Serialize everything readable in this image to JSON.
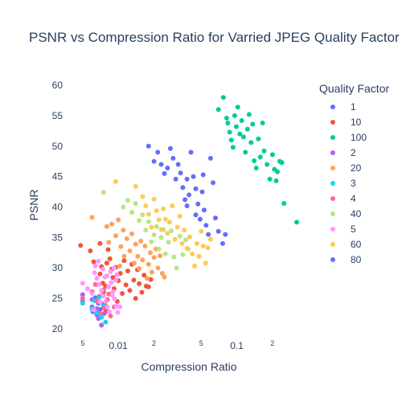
{
  "chart_data": {
    "type": "scatter",
    "title": "PSNR vs Compression Ratio for Varried JPEG Quality Factor",
    "xlabel": "Compression Ratio",
    "ylabel": "PSNR",
    "x_scale": "log",
    "xlim": [
      0.0035,
      0.38
    ],
    "ylim": [
      19.2,
      60.8
    ],
    "y_ticks": [
      20,
      25,
      30,
      35,
      40,
      45,
      50,
      55,
      60
    ],
    "x_major_ticks": [
      {
        "value": 0.01,
        "label": "0.01"
      },
      {
        "value": 0.1,
        "label": "0.1"
      }
    ],
    "x_minor_ticks": [
      {
        "value": 0.005,
        "label": "5"
      },
      {
        "value": 0.02,
        "label": "2"
      },
      {
        "value": 0.05,
        "label": "5"
      },
      {
        "value": 0.2,
        "label": "2"
      }
    ],
    "grid": false,
    "legend_title": "Quality Factor",
    "legend_position": "right",
    "series": [
      {
        "name": "1",
        "color": "#636efa",
        "points": [
          [
            0.005,
            24.5
          ],
          [
            0.006,
            23.6
          ],
          [
            0.0068,
            24.2
          ],
          [
            0.0061,
            22.8
          ],
          [
            0.0064,
            25.1
          ],
          [
            0.007,
            23.2
          ],
          [
            0.0075,
            24.0
          ],
          [
            0.0066,
            22.3
          ]
        ]
      },
      {
        "name": "10",
        "color": "#ef553b",
        "points": [
          [
            0.0048,
            33.7
          ],
          [
            0.0058,
            32.8
          ],
          [
            0.0062,
            31.0
          ],
          [
            0.007,
            34.0
          ],
          [
            0.0072,
            30.2
          ],
          [
            0.007,
            29.0
          ],
          [
            0.0074,
            27.5
          ],
          [
            0.0075,
            26.0
          ],
          [
            0.0077,
            24.2
          ],
          [
            0.0079,
            22.9
          ],
          [
            0.008,
            30.8
          ],
          [
            0.0082,
            33.0
          ],
          [
            0.0085,
            31.5
          ],
          [
            0.0088,
            29.8
          ],
          [
            0.009,
            28.4
          ],
          [
            0.0092,
            26.6
          ],
          [
            0.0095,
            30.1
          ],
          [
            0.0098,
            24.5
          ],
          [
            0.01,
            27.9
          ],
          [
            0.0104,
            29.1
          ],
          [
            0.0108,
            25.8
          ],
          [
            0.0112,
            31.2
          ],
          [
            0.0116,
            27.2
          ],
          [
            0.012,
            29.5
          ],
          [
            0.0125,
            26.3
          ],
          [
            0.013,
            30.6
          ],
          [
            0.0135,
            28.0
          ],
          [
            0.014,
            25.0
          ],
          [
            0.0145,
            29.7
          ],
          [
            0.015,
            27.4
          ],
          [
            0.0158,
            26.0
          ],
          [
            0.0165,
            28.8
          ],
          [
            0.0172,
            27.0
          ],
          [
            0.018,
            26.9
          ],
          [
            0.0188,
            28.1
          ],
          [
            0.0069,
            25.3
          ],
          [
            0.0078,
            27.0
          ]
        ]
      },
      {
        "name": "100",
        "color": "#00cc96",
        "points": [
          [
            0.07,
            56.0
          ],
          [
            0.077,
            58.0
          ],
          [
            0.082,
            54.6
          ],
          [
            0.084,
            53.8
          ],
          [
            0.087,
            52.3
          ],
          [
            0.09,
            51.0
          ],
          [
            0.093,
            49.8
          ],
          [
            0.096,
            55.0
          ],
          [
            0.099,
            53.2
          ],
          [
            0.102,
            56.4
          ],
          [
            0.106,
            52.0
          ],
          [
            0.11,
            54.2
          ],
          [
            0.114,
            51.5
          ],
          [
            0.118,
            49.0
          ],
          [
            0.123,
            52.8
          ],
          [
            0.127,
            55.2
          ],
          [
            0.132,
            50.6
          ],
          [
            0.136,
            53.6
          ],
          [
            0.14,
            47.6
          ],
          [
            0.146,
            46.4
          ],
          [
            0.152,
            51.2
          ],
          [
            0.158,
            48.2
          ],
          [
            0.165,
            53.8
          ],
          [
            0.17,
            49.2
          ],
          [
            0.18,
            47.0
          ],
          [
            0.19,
            44.6
          ],
          [
            0.2,
            48.6
          ],
          [
            0.208,
            46.2
          ],
          [
            0.215,
            44.3
          ],
          [
            0.22,
            45.8
          ],
          [
            0.23,
            47.5
          ],
          [
            0.24,
            47.3
          ],
          [
            0.25,
            40.6
          ],
          [
            0.32,
            37.5
          ]
        ]
      },
      {
        "name": "2",
        "color": "#ab63fa",
        "points": [
          [
            0.005,
            25.6
          ],
          [
            0.006,
            24.8
          ],
          [
            0.0068,
            21.7
          ],
          [
            0.0072,
            20.6
          ],
          [
            0.0066,
            23.3
          ],
          [
            0.0076,
            22.5
          ]
        ]
      },
      {
        "name": "20",
        "color": "#ffa15a",
        "points": [
          [
            0.006,
            38.3
          ],
          [
            0.008,
            36.8
          ],
          [
            0.0088,
            37.2
          ],
          [
            0.0095,
            35.3
          ],
          [
            0.01,
            37.9
          ],
          [
            0.0105,
            33.5
          ],
          [
            0.011,
            36.2
          ],
          [
            0.0112,
            31.9
          ],
          [
            0.0118,
            34.8
          ],
          [
            0.0125,
            32.8
          ],
          [
            0.013,
            35.6
          ],
          [
            0.0136,
            30.8
          ],
          [
            0.014,
            33.9
          ],
          [
            0.0146,
            31.9
          ],
          [
            0.015,
            29.9
          ],
          [
            0.0155,
            34.4
          ],
          [
            0.016,
            31.3
          ],
          [
            0.0168,
            33.6
          ],
          [
            0.0175,
            28.3
          ],
          [
            0.018,
            30.6
          ],
          [
            0.0186,
            32.5
          ],
          [
            0.0192,
            29.3
          ],
          [
            0.02,
            31.7
          ],
          [
            0.0208,
            33.1
          ],
          [
            0.0216,
            30.0
          ],
          [
            0.0225,
            32.0
          ],
          [
            0.0235,
            29.1
          ],
          [
            0.0245,
            28.5
          ],
          [
            0.0083,
            34.2
          ],
          [
            0.0103,
            30.3
          ]
        ]
      },
      {
        "name": "3",
        "color": "#19d3f3",
        "points": [
          [
            0.005,
            24.2
          ],
          [
            0.006,
            23.3
          ],
          [
            0.0066,
            22.6
          ],
          [
            0.0072,
            21.9
          ],
          [
            0.0078,
            21.1
          ],
          [
            0.0063,
            24.6
          ],
          [
            0.0069,
            25.2
          ],
          [
            0.0075,
            23.8
          ]
        ]
      },
      {
        "name": "4",
        "color": "#ff6692",
        "points": [
          [
            0.005,
            25.0
          ],
          [
            0.006,
            26.1
          ],
          [
            0.0066,
            24.6
          ],
          [
            0.0071,
            22.5
          ],
          [
            0.0076,
            23.4
          ],
          [
            0.0081,
            24.8
          ],
          [
            0.0086,
            22.1
          ],
          [
            0.0092,
            23.6
          ],
          [
            0.0064,
            27.3
          ],
          [
            0.0075,
            26.4
          ],
          [
            0.0083,
            25.7
          ]
        ]
      },
      {
        "name": "40",
        "color": "#b6e880",
        "points": [
          [
            0.0075,
            42.4
          ],
          [
            0.011,
            40.0
          ],
          [
            0.012,
            41.1
          ],
          [
            0.013,
            39.1
          ],
          [
            0.014,
            40.6
          ],
          [
            0.015,
            37.8
          ],
          [
            0.016,
            38.7
          ],
          [
            0.017,
            36.2
          ],
          [
            0.018,
            37.6
          ],
          [
            0.019,
            34.3
          ],
          [
            0.02,
            35.4
          ],
          [
            0.021,
            36.8
          ],
          [
            0.022,
            33.1
          ],
          [
            0.023,
            35.0
          ],
          [
            0.024,
            36.3
          ],
          [
            0.025,
            32.3
          ],
          [
            0.0265,
            34.2
          ],
          [
            0.028,
            36.1
          ],
          [
            0.0295,
            31.8
          ],
          [
            0.031,
            30.0
          ],
          [
            0.033,
            35.2
          ],
          [
            0.035,
            32.2
          ],
          [
            0.037,
            34.6
          ],
          [
            0.039,
            33.1
          ]
        ]
      },
      {
        "name": "5",
        "color": "#ff97ff",
        "points": [
          [
            0.005,
            27.5
          ],
          [
            0.0055,
            26.6
          ],
          [
            0.006,
            25.8
          ],
          [
            0.0063,
            29.2
          ],
          [
            0.0066,
            28.3
          ],
          [
            0.0069,
            27.3
          ],
          [
            0.0072,
            26.3
          ],
          [
            0.0075,
            25.4
          ],
          [
            0.0078,
            24.5
          ],
          [
            0.0081,
            23.6
          ],
          [
            0.0084,
            22.8
          ],
          [
            0.0087,
            27.6
          ],
          [
            0.009,
            26.1
          ],
          [
            0.0093,
            24.9
          ],
          [
            0.0096,
            23.7
          ],
          [
            0.0099,
            22.7
          ],
          [
            0.0103,
            23.6
          ],
          [
            0.0064,
            30.3
          ],
          [
            0.0068,
            31.1
          ],
          [
            0.0074,
            29.8
          ],
          [
            0.008,
            28.7
          ],
          [
            0.0086,
            29.4
          ],
          [
            0.0095,
            28.0
          ],
          [
            0.007,
            24.4
          ],
          [
            0.0077,
            28.5
          ],
          [
            0.0089,
            25.5
          ],
          [
            0.0062,
            23.1
          ],
          [
            0.0083,
            26.9
          ],
          [
            0.0092,
            30.0
          ],
          [
            0.0097,
            28.9
          ]
        ]
      },
      {
        "name": "60",
        "color": "#fecb52",
        "points": [
          [
            0.0095,
            44.2
          ],
          [
            0.014,
            43.4
          ],
          [
            0.016,
            41.7
          ],
          [
            0.017,
            40.2
          ],
          [
            0.018,
            38.8
          ],
          [
            0.019,
            36.7
          ],
          [
            0.02,
            41.3
          ],
          [
            0.021,
            39.4
          ],
          [
            0.022,
            37.9
          ],
          [
            0.023,
            36.3
          ],
          [
            0.024,
            39.7
          ],
          [
            0.025,
            38.0
          ],
          [
            0.026,
            35.7
          ],
          [
            0.027,
            37.5
          ],
          [
            0.0285,
            40.2
          ],
          [
            0.03,
            34.7
          ],
          [
            0.0315,
            36.7
          ],
          [
            0.033,
            38.5
          ],
          [
            0.0345,
            34.0
          ],
          [
            0.036,
            36.2
          ],
          [
            0.038,
            33.2
          ],
          [
            0.04,
            35.1
          ],
          [
            0.042,
            32.3
          ],
          [
            0.044,
            30.3
          ],
          [
            0.046,
            34.0
          ],
          [
            0.048,
            31.9
          ],
          [
            0.05,
            36.0
          ],
          [
            0.052,
            33.6
          ],
          [
            0.0545,
            30.8
          ],
          [
            0.057,
            33.3
          ],
          [
            0.06,
            34.7
          ]
        ]
      },
      {
        "name": "80",
        "color": "#636efa",
        "points": [
          [
            0.018,
            50.0
          ],
          [
            0.02,
            47.5
          ],
          [
            0.0215,
            49.0
          ],
          [
            0.023,
            47.0
          ],
          [
            0.0245,
            45.5
          ],
          [
            0.026,
            46.4
          ],
          [
            0.0275,
            49.6
          ],
          [
            0.029,
            48.0
          ],
          [
            0.0305,
            44.6
          ],
          [
            0.032,
            47.0
          ],
          [
            0.0335,
            45.6
          ],
          [
            0.035,
            43.2
          ],
          [
            0.0365,
            41.2
          ],
          [
            0.038,
            44.6
          ],
          [
            0.0395,
            42.0
          ],
          [
            0.041,
            49.0
          ],
          [
            0.043,
            45.0
          ],
          [
            0.045,
            43.0
          ],
          [
            0.047,
            40.5
          ],
          [
            0.049,
            38.0
          ],
          [
            0.051,
            42.5
          ],
          [
            0.053,
            39.5
          ],
          [
            0.055,
            37.0
          ],
          [
            0.0575,
            35.5
          ],
          [
            0.06,
            48.0
          ],
          [
            0.063,
            44.0
          ],
          [
            0.066,
            38.2
          ],
          [
            0.07,
            36.0
          ],
          [
            0.076,
            34.0
          ],
          [
            0.08,
            35.5
          ],
          [
            0.045,
            38.7
          ],
          [
            0.038,
            40.2
          ],
          [
            0.052,
            45.3
          ]
        ]
      }
    ]
  }
}
